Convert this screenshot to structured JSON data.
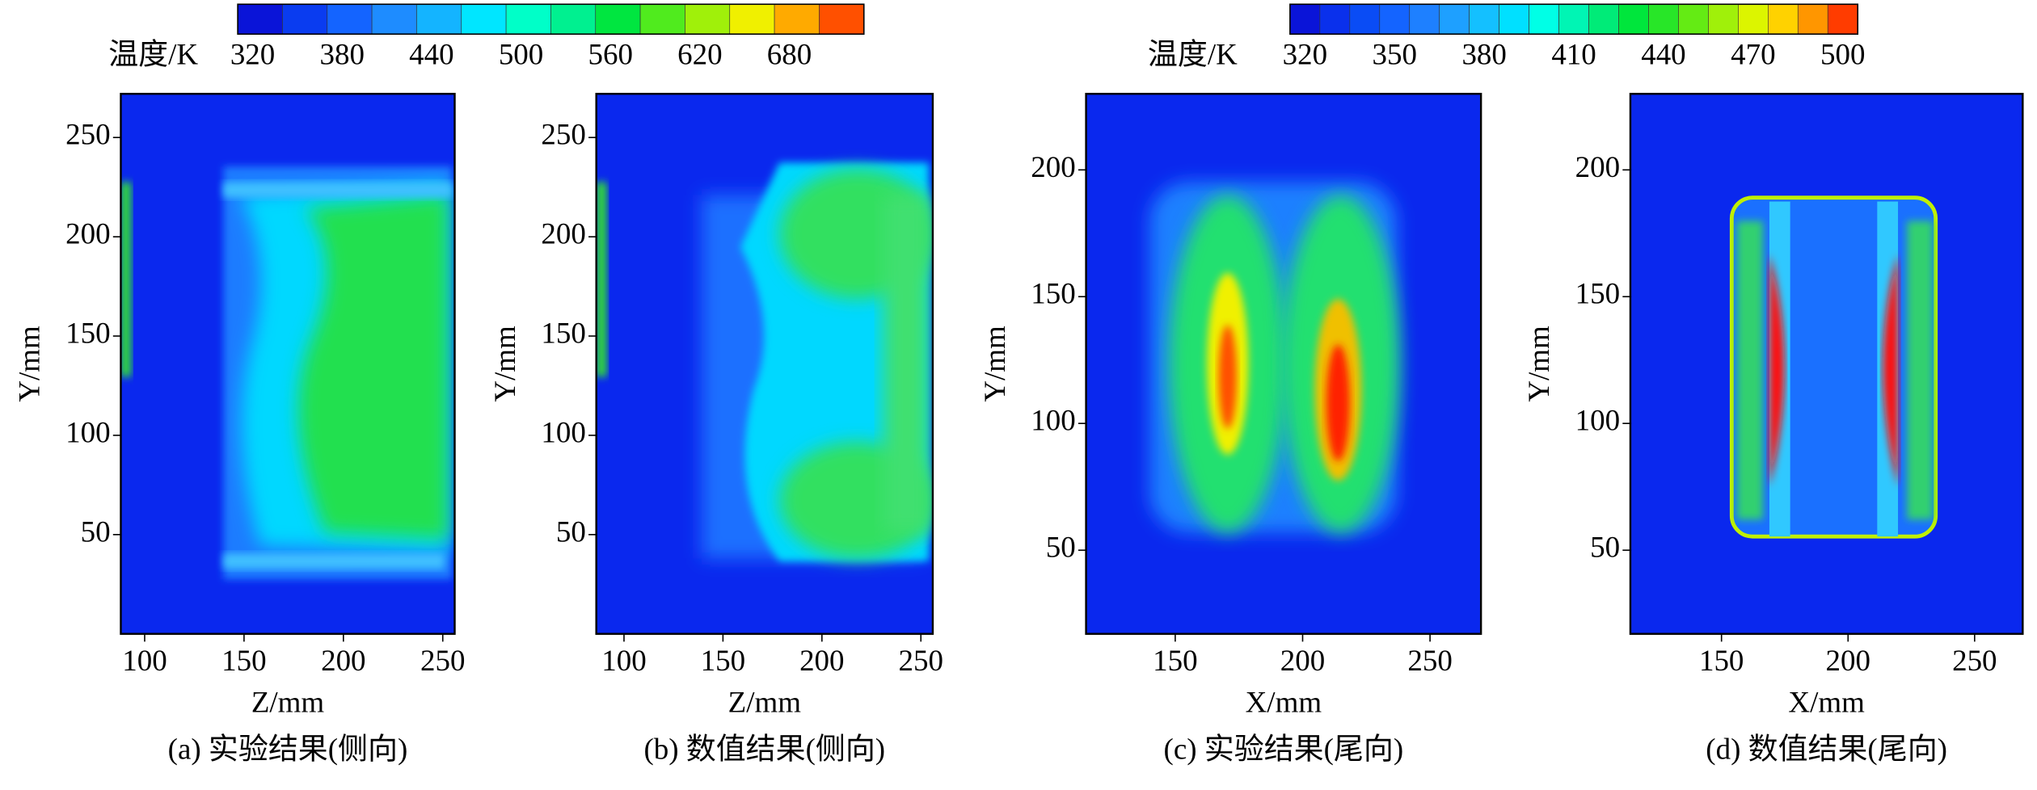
{
  "chart_data": [
    {
      "type": "heatmap",
      "xlabel": "Z/mm",
      "ylabel": "Y/mm",
      "caption": "(a) 实验结果(侧向)",
      "xlim": [
        88,
        256
      ],
      "ylim": [
        0,
        272
      ],
      "xticks": [
        100,
        150,
        200,
        250
      ],
      "yticks": [
        50,
        100,
        150,
        200,
        250
      ],
      "colorbar": {
        "label": "温度/K",
        "lim": [
          310,
          730
        ],
        "ticks": [
          320,
          380,
          440,
          500,
          560,
          620,
          680
        ],
        "colors": [
          "#0a14d8",
          "#0a3cf0",
          "#1464ff",
          "#1e8cff",
          "#14b4ff",
          "#00e6ff",
          "#00ffc8",
          "#00f090",
          "#00e640",
          "#50eb1e",
          "#a0f00a",
          "#f0f000",
          "#ffaa00",
          "#ff5000"
        ]
      }
    },
    {
      "type": "heatmap",
      "xlabel": "Z/mm",
      "ylabel": "Y/mm",
      "caption": "(b) 数值结果(侧向)",
      "xlim": [
        86,
        256
      ],
      "ylim": [
        0,
        272
      ],
      "xticks": [
        100,
        150,
        200,
        250
      ],
      "yticks": [
        50,
        100,
        150,
        200,
        250
      ]
    },
    {
      "type": "heatmap",
      "xlabel": "X/mm",
      "ylabel": "Y/mm",
      "caption": "(c) 实验结果(尾向)",
      "xlim": [
        115,
        270
      ],
      "ylim": [
        17,
        230
      ],
      "xticks": [
        150,
        200,
        250
      ],
      "yticks": [
        50,
        100,
        150,
        200
      ],
      "colorbar": {
        "label": "温度/K",
        "lim": [
          315,
          505
        ],
        "ticks": [
          320,
          350,
          380,
          410,
          440,
          470,
          500
        ],
        "colors": [
          "#0a14d8",
          "#0a30ec",
          "#0a4cf5",
          "#1464ff",
          "#1e80ff",
          "#1ea0ff",
          "#14c0ff",
          "#00e0ff",
          "#00ffe6",
          "#00f5b4",
          "#00eb78",
          "#00e63c",
          "#28e628",
          "#64eb14",
          "#a0f00a",
          "#dcf500",
          "#ffd200",
          "#ff9600",
          "#ff3c00"
        ]
      }
    },
    {
      "type": "heatmap",
      "xlabel": "X/mm",
      "ylabel": "Y/mm",
      "caption": "(d) 数值结果(尾向)",
      "xlim": [
        114,
        269
      ],
      "ylim": [
        17,
        230
      ],
      "xticks": [
        150,
        200,
        250
      ],
      "yticks": [
        50,
        100,
        150,
        200
      ]
    }
  ]
}
